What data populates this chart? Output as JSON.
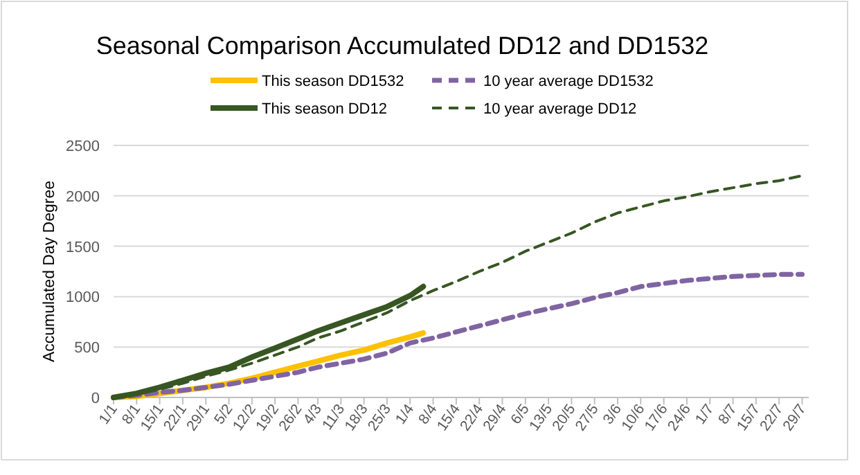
{
  "chart_data": {
    "type": "line",
    "title": "Seasonal Comparison Accumulated DD12 and DD1532",
    "ylabel": "Accumulated Day Degree",
    "x": [
      "--01-01",
      "--01-08",
      "--01-15",
      "--01-22",
      "--01-29",
      "--02-05",
      "--02-12",
      "--02-19",
      "--02-26",
      "--03-04",
      "--03-11",
      "--03-18",
      "--03-25",
      "--04-01",
      "--04-08",
      "--04-15",
      "--04-22",
      "--04-29",
      "--05-06",
      "--05-13",
      "--05-20",
      "--05-27",
      "--06-03",
      "--06-10",
      "--06-17",
      "--06-24",
      "--07-01",
      "--07-08",
      "--07-15",
      "--07-22",
      "--07-29"
    ],
    "xlim": [
      "--01-01",
      "--07-31"
    ],
    "xticks": [
      {
        "value": "--01-01",
        "label": "1/1"
      },
      {
        "value": "--01-08",
        "label": "8/1"
      },
      {
        "value": "--01-15",
        "label": "15/1"
      },
      {
        "value": "--01-22",
        "label": "22/1"
      },
      {
        "value": "--01-29",
        "label": "29/1"
      },
      {
        "value": "--02-05",
        "label": "5/2"
      },
      {
        "value": "--02-12",
        "label": "12/2"
      },
      {
        "value": "--02-19",
        "label": "19/2"
      },
      {
        "value": "--02-26",
        "label": "26/2"
      },
      {
        "value": "--03-04",
        "label": "4/3"
      },
      {
        "value": "--03-11",
        "label": "11/3"
      },
      {
        "value": "--03-18",
        "label": "18/3"
      },
      {
        "value": "--03-25",
        "label": "25/3"
      },
      {
        "value": "--04-01",
        "label": "1/4"
      },
      {
        "value": "--04-08",
        "label": "8/4"
      },
      {
        "value": "--04-15",
        "label": "15/4"
      },
      {
        "value": "--04-22",
        "label": "22/4"
      },
      {
        "value": "--04-29",
        "label": "29/4"
      },
      {
        "value": "--05-06",
        "label": "6/5"
      },
      {
        "value": "--05-13",
        "label": "13/5"
      },
      {
        "value": "--05-20",
        "label": "20/5"
      },
      {
        "value": "--05-27",
        "label": "27/5"
      },
      {
        "value": "--06-03",
        "label": "3/6"
      },
      {
        "value": "--06-10",
        "label": "10/6"
      },
      {
        "value": "--06-17",
        "label": "17/6"
      },
      {
        "value": "--06-24",
        "label": "24/6"
      },
      {
        "value": "--07-01",
        "label": "1/7"
      },
      {
        "value": "--07-08",
        "label": "8/7"
      },
      {
        "value": "--07-15",
        "label": "15/7"
      },
      {
        "value": "--07-22",
        "label": "22/7"
      },
      {
        "value": "--07-29",
        "label": "29/7"
      }
    ],
    "ylim": [
      0,
      2500
    ],
    "yticks": [
      0,
      500,
      1000,
      1500,
      2000,
      2500
    ],
    "grid": "y",
    "legend": "top",
    "marker": "none",
    "series": [
      {
        "name": "This season DD1532",
        "color": "#ffc000",
        "line_style": "solid",
        "x": [
          "--01-01",
          "--01-08",
          "--01-15",
          "--01-22",
          "--01-29",
          "--02-05",
          "--02-12",
          "--02-19",
          "--02-26",
          "--03-04",
          "--03-11",
          "--03-18",
          "--03-25",
          "--04-01",
          "--04-05"
        ],
        "values": [
          0,
          10,
          40,
          70,
          100,
          140,
          190,
          250,
          310,
          360,
          420,
          470,
          540,
          600,
          640
        ]
      },
      {
        "name": "10 year average DD1532",
        "color": "#8064a2",
        "line_style": "dashed",
        "values": [
          0,
          20,
          50,
          70,
          100,
          130,
          170,
          210,
          250,
          300,
          340,
          380,
          440,
          540,
          590,
          650,
          710,
          770,
          830,
          880,
          930,
          990,
          1040,
          1100,
          1130,
          1160,
          1180,
          1200,
          1210,
          1220,
          1220
        ]
      },
      {
        "name": "This season DD12",
        "color": "#375623",
        "line_style": "solid",
        "x": [
          "--01-01",
          "--01-08",
          "--01-15",
          "--01-22",
          "--01-29",
          "--02-05",
          "--02-12",
          "--02-19",
          "--02-26",
          "--03-04",
          "--03-11",
          "--03-18",
          "--03-25",
          "--04-01",
          "--04-05"
        ],
        "values": [
          0,
          40,
          100,
          170,
          240,
          300,
          400,
          490,
          580,
          660,
          740,
          820,
          900,
          1010,
          1100
        ]
      },
      {
        "name": "10 year average DD12",
        "color": "#375623",
        "line_style": "dashed",
        "values": [
          0,
          30,
          80,
          140,
          210,
          270,
          340,
          420,
          500,
          590,
          660,
          750,
          840,
          960,
          1060,
          1150,
          1250,
          1340,
          1450,
          1540,
          1630,
          1740,
          1830,
          1890,
          1950,
          1990,
          2040,
          2080,
          2120,
          2150,
          2200
        ]
      }
    ]
  }
}
